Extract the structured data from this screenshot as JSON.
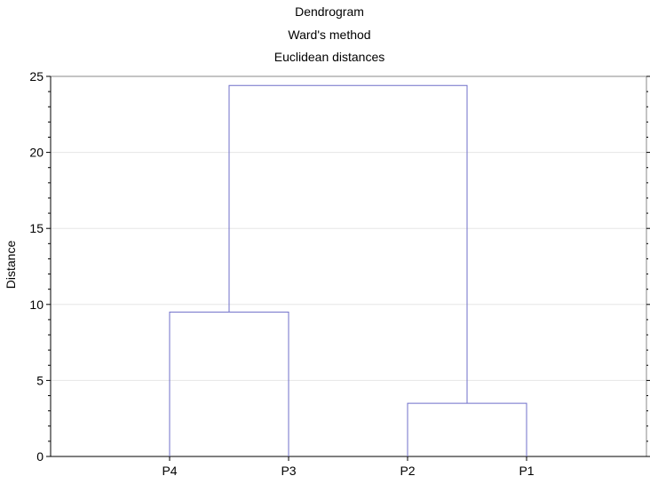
{
  "chart_data": {
    "type": "dendrogram",
    "title": "Dendrogram",
    "subtitle": "Ward's method",
    "subtitle2": "Euclidean distances",
    "xlabel": "",
    "ylabel": "Distance",
    "ylim": [
      0,
      25
    ],
    "yticks": [
      0,
      5,
      10,
      15,
      20,
      25
    ],
    "leaves": [
      "P4",
      "P3",
      "P2",
      "P1"
    ],
    "merges": [
      {
        "left": "P4",
        "right": "P3",
        "height": 9.5
      },
      {
        "left": "P2",
        "right": "P1",
        "height": 3.5
      },
      {
        "left": "P4-P3",
        "right": "P2-P1",
        "height": 24.4
      }
    ],
    "grid": true,
    "colors": {
      "link": "#6f6fc9",
      "axis": "#000000",
      "grid": "#e6e6e6"
    }
  }
}
